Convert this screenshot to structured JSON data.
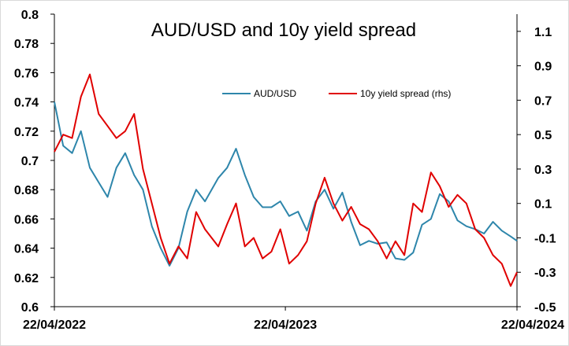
{
  "chart_data": {
    "type": "line",
    "title": "AUD/USD and 10y yield spread",
    "xlabel": "",
    "ylabel": "",
    "x_tick_labels": [
      "22/04/2022",
      "22/04/2023",
      "22/04/2024"
    ],
    "x_range": [
      "2022-04-22",
      "2024-04-22"
    ],
    "y_left": {
      "min": 0.6,
      "max": 0.8,
      "ticks": [
        "0.6",
        "0.62",
        "0.64",
        "0.66",
        "0.68",
        "0.7",
        "0.72",
        "0.74",
        "0.76",
        "0.78",
        "0.8"
      ]
    },
    "y_right": {
      "min": -0.5,
      "max": 1.2,
      "ticks": [
        "-0.5",
        "-0.3",
        "-0.1",
        "0.1",
        "0.3",
        "0.5",
        "0.7",
        "0.9",
        "1.1"
      ]
    },
    "grid": false,
    "legend_position": "top-center",
    "series": [
      {
        "name": "AUD/USD",
        "axis": "left",
        "color": "#2e86ab",
        "points": [
          [
            "2022-04-22",
            0.74
          ],
          [
            "2022-05-06",
            0.71
          ],
          [
            "2022-05-20",
            0.705
          ],
          [
            "2022-06-03",
            0.72
          ],
          [
            "2022-06-17",
            0.695
          ],
          [
            "2022-07-01",
            0.685
          ],
          [
            "2022-07-15",
            0.675
          ],
          [
            "2022-07-29",
            0.695
          ],
          [
            "2022-08-12",
            0.705
          ],
          [
            "2022-08-26",
            0.69
          ],
          [
            "2022-09-09",
            0.68
          ],
          [
            "2022-09-23",
            0.655
          ],
          [
            "2022-10-07",
            0.64
          ],
          [
            "2022-10-21",
            0.628
          ],
          [
            "2022-11-04",
            0.64
          ],
          [
            "2022-11-18",
            0.665
          ],
          [
            "2022-12-02",
            0.68
          ],
          [
            "2022-12-16",
            0.672
          ],
          [
            "2023-01-06",
            0.688
          ],
          [
            "2023-01-20",
            0.695
          ],
          [
            "2023-02-03",
            0.708
          ],
          [
            "2023-02-17",
            0.69
          ],
          [
            "2023-03-03",
            0.675
          ],
          [
            "2023-03-17",
            0.668
          ],
          [
            "2023-03-31",
            0.668
          ],
          [
            "2023-04-14",
            0.672
          ],
          [
            "2023-04-28",
            0.662
          ],
          [
            "2023-05-12",
            0.665
          ],
          [
            "2023-05-26",
            0.652
          ],
          [
            "2023-06-09",
            0.672
          ],
          [
            "2023-06-23",
            0.68
          ],
          [
            "2023-07-07",
            0.667
          ],
          [
            "2023-07-21",
            0.678
          ],
          [
            "2023-08-04",
            0.658
          ],
          [
            "2023-08-18",
            0.642
          ],
          [
            "2023-09-01",
            0.645
          ],
          [
            "2023-09-15",
            0.643
          ],
          [
            "2023-09-29",
            0.644
          ],
          [
            "2023-10-13",
            0.633
          ],
          [
            "2023-10-27",
            0.632
          ],
          [
            "2023-11-10",
            0.637
          ],
          [
            "2023-11-24",
            0.656
          ],
          [
            "2023-12-08",
            0.66
          ],
          [
            "2023-12-22",
            0.677
          ],
          [
            "2024-01-05",
            0.672
          ],
          [
            "2024-01-19",
            0.659
          ],
          [
            "2024-02-02",
            0.655
          ],
          [
            "2024-02-16",
            0.653
          ],
          [
            "2024-03-01",
            0.65
          ],
          [
            "2024-03-15",
            0.658
          ],
          [
            "2024-03-29",
            0.652
          ],
          [
            "2024-04-12",
            0.648
          ],
          [
            "2024-04-22",
            0.645
          ]
        ]
      },
      {
        "name": "10y yield spread (rhs)",
        "axis": "right",
        "color": "#e00000",
        "points": [
          [
            "2022-04-22",
            0.4
          ],
          [
            "2022-05-06",
            0.5
          ],
          [
            "2022-05-20",
            0.48
          ],
          [
            "2022-06-03",
            0.72
          ],
          [
            "2022-06-17",
            0.85
          ],
          [
            "2022-07-01",
            0.62
          ],
          [
            "2022-07-15",
            0.55
          ],
          [
            "2022-07-29",
            0.48
          ],
          [
            "2022-08-12",
            0.52
          ],
          [
            "2022-08-26",
            0.62
          ],
          [
            "2022-09-09",
            0.3
          ],
          [
            "2022-09-23",
            0.1
          ],
          [
            "2022-10-07",
            -0.1
          ],
          [
            "2022-10-21",
            -0.25
          ],
          [
            "2022-11-04",
            -0.15
          ],
          [
            "2022-11-18",
            -0.22
          ],
          [
            "2022-12-02",
            0.05
          ],
          [
            "2022-12-16",
            -0.05
          ],
          [
            "2023-01-06",
            -0.15
          ],
          [
            "2023-01-20",
            -0.02
          ],
          [
            "2023-02-03",
            0.1
          ],
          [
            "2023-02-17",
            -0.15
          ],
          [
            "2023-03-03",
            -0.1
          ],
          [
            "2023-03-17",
            -0.22
          ],
          [
            "2023-03-31",
            -0.18
          ],
          [
            "2023-04-14",
            -0.05
          ],
          [
            "2023-04-28",
            -0.25
          ],
          [
            "2023-05-12",
            -0.2
          ],
          [
            "2023-05-26",
            -0.12
          ],
          [
            "2023-06-09",
            0.1
          ],
          [
            "2023-06-23",
            0.25
          ],
          [
            "2023-07-07",
            0.1
          ],
          [
            "2023-07-21",
            0.0
          ],
          [
            "2023-08-04",
            0.08
          ],
          [
            "2023-08-18",
            -0.02
          ],
          [
            "2023-09-01",
            -0.05
          ],
          [
            "2023-09-15",
            -0.12
          ],
          [
            "2023-09-29",
            -0.22
          ],
          [
            "2023-10-13",
            -0.12
          ],
          [
            "2023-10-27",
            -0.2
          ],
          [
            "2023-11-10",
            0.1
          ],
          [
            "2023-11-24",
            0.05
          ],
          [
            "2023-12-08",
            0.28
          ],
          [
            "2023-12-22",
            0.2
          ],
          [
            "2024-01-05",
            0.08
          ],
          [
            "2024-01-19",
            0.15
          ],
          [
            "2024-02-02",
            0.1
          ],
          [
            "2024-02-16",
            -0.05
          ],
          [
            "2024-03-01",
            -0.1
          ],
          [
            "2024-03-15",
            -0.2
          ],
          [
            "2024-03-29",
            -0.25
          ],
          [
            "2024-04-12",
            -0.38
          ],
          [
            "2024-04-22",
            -0.3
          ]
        ]
      }
    ]
  }
}
